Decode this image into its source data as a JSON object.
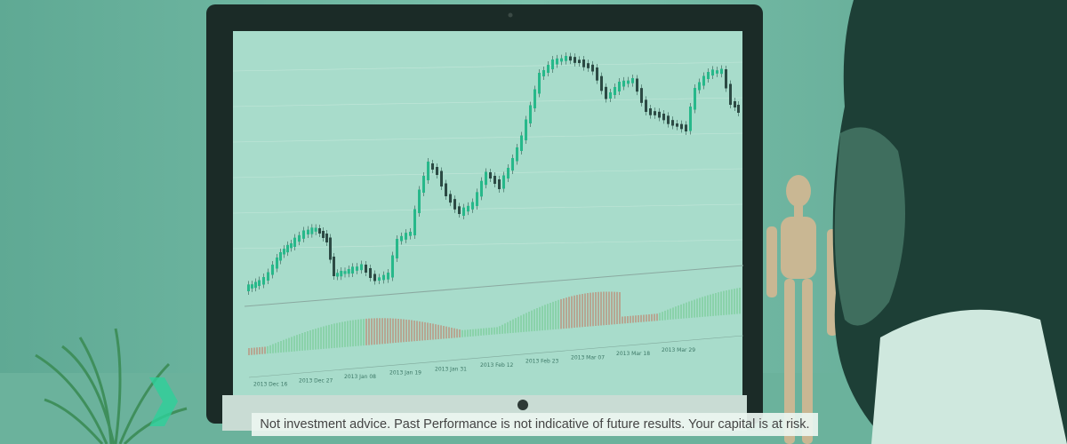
{
  "screen": {
    "date_labels": [
      "2013 Dec 16",
      "2013 Dec 27",
      "2013 Jan 08",
      "2013 Jan 19",
      "2013 Jan 31",
      "2013 Feb 12",
      "2013 Feb 23",
      "2013 Mar 07",
      "2013 Mar 18",
      "2013 Mar 29"
    ]
  },
  "footer": {
    "disclaimer": "Not investment advice. Past Performance is not indicative of future results. Your capital is at risk."
  }
}
